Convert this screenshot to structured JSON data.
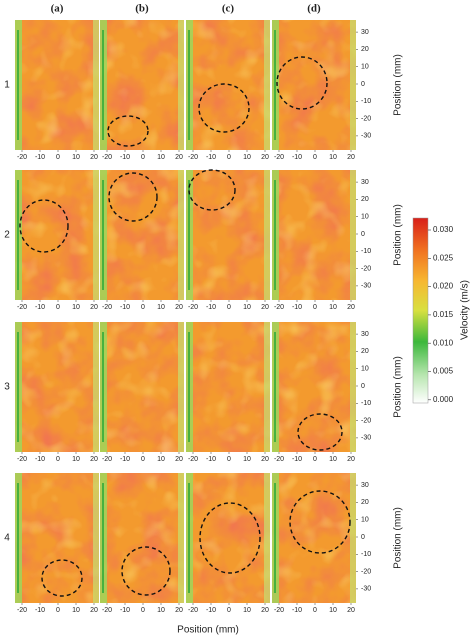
{
  "column_labels": [
    "(a)",
    "(b)",
    "(c)",
    "(d)"
  ],
  "row_labels": [
    "1",
    "2",
    "3",
    "4"
  ],
  "x_ticks": [
    -20,
    -10,
    0,
    10,
    20
  ],
  "y_ticks": [
    30,
    20,
    10,
    0,
    -10,
    -20,
    -30
  ],
  "x_axis_label": "Position (mm)",
  "y_axis_label": "Position (mm)",
  "colorbar": {
    "label": "Velocity (m/s)",
    "ticks": [
      "0.030",
      "0.025",
      "0.020",
      "0.015",
      "0.010",
      "0.005",
      "0.000"
    ]
  }
}
